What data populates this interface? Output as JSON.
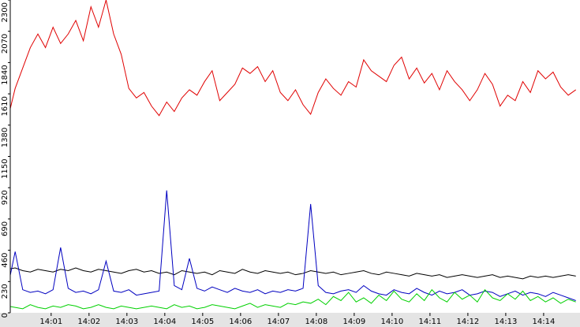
{
  "chart_data": {
    "type": "line",
    "x": [
      -0.35,
      -0.15,
      0.05,
      0.25,
      0.45,
      0.65,
      0.85,
      1.05,
      1.25,
      1.45,
      1.65,
      1.85,
      2.05,
      2.25,
      2.45,
      2.65,
      2.85,
      3.05,
      3.25,
      3.45,
      3.65,
      3.85,
      4.05,
      4.25,
      4.45,
      4.65,
      4.85,
      5.05,
      5.25,
      5.45,
      5.65,
      5.85,
      6.05,
      6.25,
      6.45,
      6.65,
      6.85,
      7.05,
      7.25,
      7.45,
      7.65,
      7.85,
      8.05,
      8.25,
      8.45,
      8.65,
      8.85,
      9.05,
      9.25,
      9.45,
      9.65,
      9.85,
      10.05,
      10.25,
      10.45,
      10.65,
      10.85,
      11.05,
      11.25,
      11.45,
      11.65,
      11.85,
      12.05,
      12.25,
      12.45,
      12.65,
      12.85,
      13.05,
      13.25,
      13.45,
      13.65,
      13.85,
      14.05,
      14.25,
      14.45,
      14.65,
      14.85
    ],
    "series": [
      {
        "color": "#e00000",
        "values": [
          1600,
          1420,
          1650,
          1800,
          1950,
          2050,
          1950,
          2100,
          1980,
          2050,
          2150,
          2000,
          2250,
          2100,
          2300,
          2050,
          1900,
          1650,
          1580,
          1620,
          1520,
          1450,
          1550,
          1480,
          1580,
          1640,
          1600,
          1700,
          1780,
          1560,
          1620,
          1680,
          1800,
          1760,
          1810,
          1700,
          1780,
          1620,
          1560,
          1640,
          1530,
          1460,
          1620,
          1720,
          1650,
          1600,
          1700,
          1660,
          1860,
          1780,
          1740,
          1700,
          1820,
          1880,
          1720,
          1800,
          1690,
          1760,
          1640,
          1780,
          1700,
          1640,
          1560,
          1640,
          1760,
          1680,
          1520,
          1600,
          1560,
          1700,
          1620,
          1780,
          1720,
          1770,
          1660,
          1600,
          1640
        ]
      },
      {
        "color": "#000000",
        "values": [
          290,
          320,
          330,
          310,
          300,
          320,
          310,
          300,
          320,
          310,
          330,
          310,
          300,
          320,
          310,
          300,
          290,
          310,
          320,
          300,
          310,
          290,
          300,
          280,
          310,
          300,
          290,
          300,
          280,
          310,
          300,
          290,
          320,
          300,
          290,
          310,
          300,
          290,
          300,
          280,
          290,
          310,
          300,
          290,
          300,
          280,
          290,
          300,
          310,
          290,
          280,
          300,
          290,
          280,
          270,
          290,
          280,
          270,
          280,
          260,
          270,
          280,
          270,
          260,
          270,
          280,
          260,
          270,
          260,
          250,
          270,
          260,
          270,
          260,
          270,
          280,
          270
        ]
      },
      {
        "color": "#0000c0",
        "values": [
          230,
          180,
          450,
          170,
          150,
          160,
          140,
          170,
          480,
          180,
          150,
          160,
          140,
          170,
          380,
          160,
          150,
          170,
          130,
          140,
          150,
          160,
          900,
          200,
          170,
          400,
          180,
          160,
          190,
          170,
          150,
          180,
          160,
          150,
          170,
          140,
          160,
          150,
          170,
          160,
          180,
          800,
          200,
          150,
          140,
          160,
          170,
          150,
          200,
          160,
          140,
          130,
          170,
          150,
          140,
          180,
          150,
          130,
          160,
          140,
          150,
          170,
          130,
          140,
          160,
          150,
          120,
          140,
          160,
          130,
          150,
          140,
          120,
          150,
          130,
          110,
          90
        ]
      },
      {
        "color": "#00d000",
        "values": [
          30,
          50,
          40,
          30,
          60,
          40,
          30,
          50,
          40,
          60,
          50,
          30,
          40,
          60,
          40,
          30,
          50,
          40,
          30,
          40,
          50,
          40,
          30,
          60,
          40,
          50,
          30,
          40,
          60,
          50,
          40,
          30,
          50,
          70,
          40,
          60,
          50,
          40,
          70,
          60,
          80,
          70,
          100,
          60,
          120,
          90,
          150,
          80,
          110,
          70,
          130,
          90,
          160,
          100,
          80,
          140,
          90,
          170,
          110,
          80,
          150,
          100,
          130,
          80,
          170,
          110,
          90,
          140,
          100,
          160,
          90,
          120,
          80,
          110,
          70,
          100,
          80
        ]
      }
    ],
    "xlim": [
      -0.35,
      14.96
    ],
    "xticks": [
      {
        "value": 1,
        "label": "14:01"
      },
      {
        "value": 2,
        "label": "14:02"
      },
      {
        "value": 3,
        "label": "14:03"
      },
      {
        "value": 4,
        "label": "14:04"
      },
      {
        "value": 5,
        "label": "14:05"
      },
      {
        "value": 6,
        "label": "14:06"
      },
      {
        "value": 7,
        "label": "14:07"
      },
      {
        "value": 8,
        "label": "14:08"
      },
      {
        "value": 9,
        "label": "14:09"
      },
      {
        "value": 10,
        "label": "14:10"
      },
      {
        "value": 11,
        "label": "14:11"
      },
      {
        "value": 12,
        "label": "14:12"
      },
      {
        "value": 13,
        "label": "14:13"
      },
      {
        "value": 14,
        "label": "14:14"
      }
    ],
    "ylim": [
      0,
      2300
    ],
    "yticks": [
      0,
      230,
      460,
      690,
      920,
      1150,
      1380,
      1610,
      1840,
      2070,
      2300
    ]
  }
}
